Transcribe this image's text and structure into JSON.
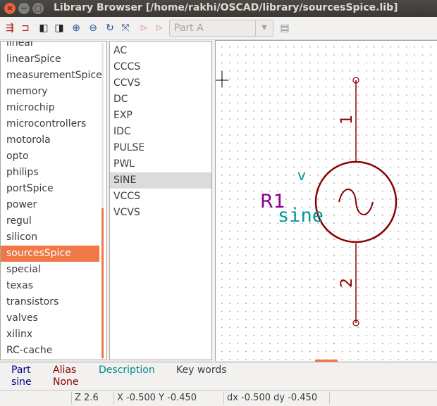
{
  "window": {
    "title": "Library Browser [/home/rakhi/OSCAD/library/sourcesSpice.lib]",
    "close_glyph": "×",
    "minimize_glyph": "−",
    "maximize_glyph": "□"
  },
  "toolbar": {
    "icons": [
      "select-library-icon",
      "load-component-icon",
      "previous-part-icon",
      "next-part-icon",
      "zoom-in-icon",
      "zoom-out-icon",
      "redraw-icon",
      "zoom-auto-icon",
      "body-style-1-icon",
      "body-style-2-icon",
      "export-icon"
    ],
    "glyphs": {
      "select_library": "⇶",
      "load_component": "⊐",
      "prev": "◧",
      "next": "◨",
      "zoom_in": "⊕",
      "zoom_out": "⊖",
      "redraw": "↻",
      "zoom_auto": "⤧",
      "style1": "⊳",
      "style2": "⊳",
      "export": "▤"
    },
    "part_select": {
      "value": "Part A",
      "arrow": "▼"
    }
  },
  "libraries": {
    "items": [
      "linear",
      "linearSpice",
      "measurementSpice",
      "memory",
      "microchip",
      "microcontrollers",
      "motorola",
      "opto",
      "philips",
      "portSpice",
      "power",
      "regul",
      "silicon",
      "sourcesSpice",
      "special",
      "texas",
      "transistors",
      "valves",
      "xilinx",
      "RC-cache"
    ],
    "selected": "sourcesSpice"
  },
  "components": {
    "items": [
      "AC",
      "CCCS",
      "CCVS",
      "DC",
      "EXP",
      "IDC",
      "PULSE",
      "PWL",
      "SINE",
      "VCCS",
      "VCVS"
    ],
    "selected": "SINE"
  },
  "symbol": {
    "reference": "R1",
    "value": "sine",
    "pin_top": "1",
    "pin_bottom": "2",
    "v_label": "v",
    "colors": {
      "body": "#8b0000",
      "reference": "#8b008b",
      "value": "#009b9b"
    }
  },
  "info": {
    "part": {
      "label": "Part",
      "value": "sine"
    },
    "alias": {
      "label": "Alias",
      "value": "None"
    },
    "description": {
      "label": "Description",
      "value": ""
    },
    "keywords": {
      "label": "Key words",
      "value": ""
    },
    "colors": {
      "part": "#00008b",
      "alias": "#8b0000",
      "description": "#008b8b",
      "keywords": "#3c3c3c"
    }
  },
  "status": {
    "zoom": "Z 2.6",
    "xy": "X -0.500  Y -0.450",
    "dxdy": "dx -0.500  dy -0.450"
  }
}
